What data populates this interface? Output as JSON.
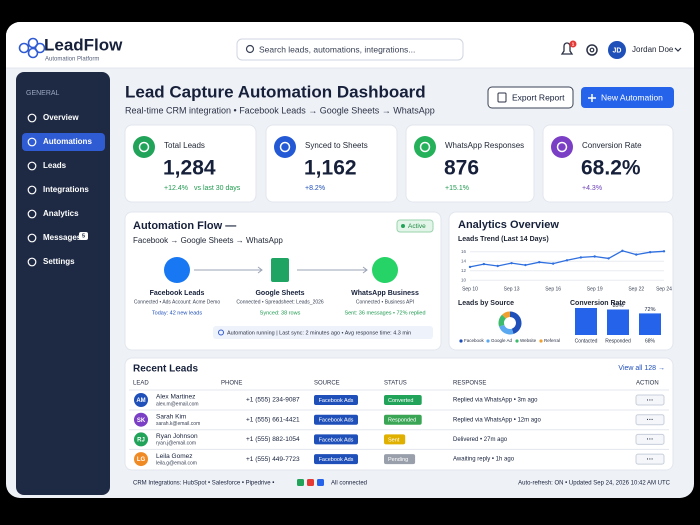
{
  "header": {
    "logo": "LeadFlow",
    "tagline": "Automation Platform",
    "search_placeholder": "Search leads, automations, integrations...",
    "notifications": "1",
    "user_initials": "JD",
    "user_name": "Jordan Doe"
  },
  "sidebar": {
    "section": "GENERAL",
    "items": [
      {
        "label": "Overview"
      },
      {
        "label": "Automations",
        "active": true
      },
      {
        "label": "Leads"
      },
      {
        "label": "Integrations"
      },
      {
        "label": "Analytics"
      },
      {
        "label": "Messages",
        "badge": "5"
      },
      {
        "label": "Settings"
      }
    ]
  },
  "page": {
    "title": "Lead Capture Automation Dashboard",
    "subtitle": "Real-time CRM integration • Facebook Leads → Google Sheets → WhatsApp",
    "actions": [
      "Export Report",
      "New Automation"
    ]
  },
  "stats": [
    {
      "label": "Total Leads",
      "value": "1,284",
      "change": "+12.4%",
      "note": "vs last 30 days"
    },
    {
      "label": "Synced to Sheets",
      "value": "1,162",
      "change": "+8.2%"
    },
    {
      "label": "WhatsApp Responses",
      "value": "876",
      "change": "+15.1%"
    },
    {
      "label": "Conversion Rate",
      "value": "68.2%",
      "change": "+4.3%"
    }
  ],
  "flow": {
    "title": "Automation Flow —",
    "route": "Facebook → Google Sheets → WhatsApp",
    "status": "Active",
    "nodes": [
      {
        "name": "Facebook Leads",
        "detail": "Connected • Ads Account: Acme Demo",
        "metric": "Today: 42 new leads"
      },
      {
        "name": "Google Sheets",
        "detail": "Connected • Spreadsheet: Leads_2026",
        "metric": "Synced: 38 rows"
      },
      {
        "name": "WhatsApp Business",
        "detail": "Connected • Business API",
        "metric": "Sent: 36 messages • 72% replied"
      }
    ],
    "status_line": "Automation running | Last sync: 2 minutes ago • Avg response time: 4.3 min"
  },
  "analytics": {
    "title": "Analytics Overview",
    "trend": {
      "type": "line",
      "title": "Leads Trend (Last 14 Days)",
      "categories": [
        "Sep 10",
        null,
        null,
        "Sep 13",
        null,
        null,
        "Sep 16",
        null,
        null,
        "Sep 19",
        null,
        null,
        "Sep 22",
        null,
        "Sep 24"
      ],
      "values": [
        12.8,
        13.4,
        13.0,
        13.6,
        13.2,
        13.8,
        13.5,
        14.2,
        14.8,
        15.0,
        14.6,
        16.2,
        15.4,
        15.9,
        16.1
      ],
      "color": "#2f6fe0",
      "ylim": [
        9,
        17
      ],
      "yticks": [
        10,
        12,
        14,
        16
      ],
      "grid": true
    },
    "sources": {
      "type": "donut",
      "title": "Leads by Source",
      "categories": [
        "Facebook",
        "Google Ad",
        "Website",
        "Referral"
      ],
      "values": [
        45,
        25,
        18,
        12
      ],
      "colors": [
        "#1f4fb8",
        "#5aa9f0",
        "#3dbb6c",
        "#f0a030"
      ]
    },
    "conversion": {
      "type": "bar",
      "title": "Conversion Rate",
      "categories": [
        "Contacted",
        "Responded",
        "68%"
      ],
      "values": [
        90,
        85,
        72
      ],
      "value_labels": [
        null,
        "85%",
        "72%"
      ],
      "color": "#2563eb",
      "ylim": [
        0,
        100
      ]
    }
  },
  "leads": {
    "title": "Recent Leads",
    "view_all": "View all 128 →",
    "columns": [
      "LEAD",
      "PHONE",
      "SOURCE",
      "STATUS",
      "RESPONSE",
      "ACTION"
    ],
    "rows": [
      {
        "initials": "AM",
        "name": "Alex Martinez",
        "email": "alex.m@email.com",
        "phone": "+1 (555) 234-9087",
        "source": "Facebook Ads",
        "status": "Converted",
        "response": "Replied via WhatsApp • 3m ago",
        "action": "···"
      },
      {
        "initials": "SK",
        "name": "Sarah Kim",
        "email": "sarah.k@email.com",
        "phone": "+1 (555) 661-4421",
        "source": "Facebook Ads",
        "status": "Responded",
        "response": "Replied via WhatsApp • 12m ago",
        "action": "···"
      },
      {
        "initials": "RJ",
        "name": "Ryan Johnson",
        "email": "ryan.j@email.com",
        "phone": "+1 (555) 882-1054",
        "source": "Facebook Ads",
        "status": "Sent",
        "response": "Delivered • 27m ago",
        "action": "···"
      },
      {
        "initials": "LG",
        "name": "Leila Gomez",
        "email": "leila.g@email.com",
        "phone": "+1 (555) 449-7723",
        "source": "Facebook Ads",
        "status": "Pending",
        "response": "Awaiting reply • 1h ago",
        "action": "···"
      }
    ]
  },
  "footer": {
    "integrations": "CRM Integrations: HubSpot • Salesforce • Pipedrive •",
    "connected": "All connected",
    "refresh": "Auto-refresh: ON • Updated Sep 24, 2026 10:42 AM UTC"
  }
}
